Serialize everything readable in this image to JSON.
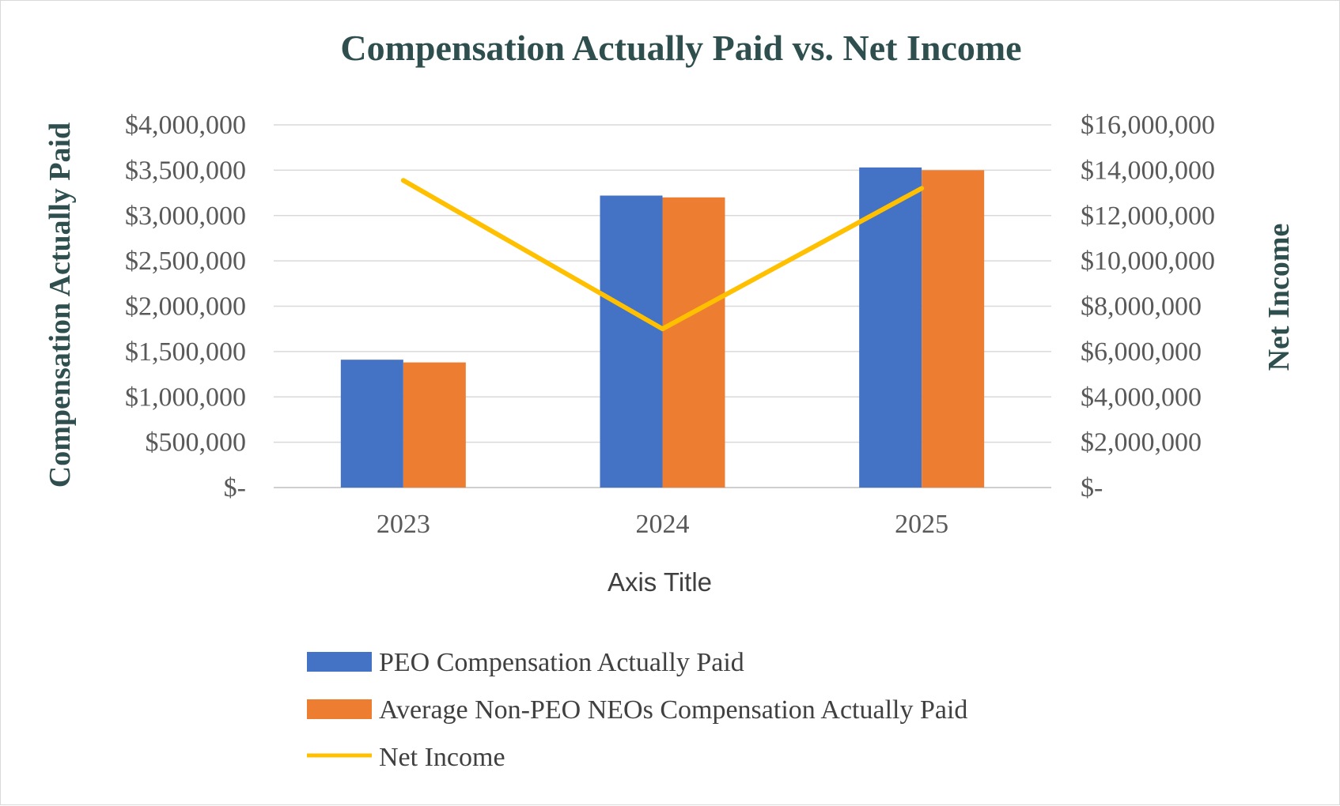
{
  "chart_data": {
    "type": "bar",
    "title": "Compensation Actually Paid vs. Net Income",
    "xlabel": "Axis Title",
    "ylabel": "Compensation Actually Paid",
    "y2label": "Net Income",
    "categories": [
      "2023",
      "2024",
      "2025"
    ],
    "ylim": [
      0,
      4000000
    ],
    "y2lim": [
      0,
      16000000
    ],
    "yticks": [
      "$-",
      "$500,000",
      "$1,000,000",
      "$1,500,000",
      "$2,000,000",
      "$2,500,000",
      "$3,000,000",
      "$3,500,000",
      "$4,000,000"
    ],
    "y2ticks": [
      "$-",
      "$2,000,000",
      "$4,000,000",
      "$6,000,000",
      "$8,000,000",
      "$10,000,000",
      "$12,000,000",
      "$14,000,000",
      "$16,000,000"
    ],
    "grid": true,
    "legend_position": "bottom",
    "series": [
      {
        "name": "PEO Compensation Actually Paid",
        "type": "bar",
        "axis": "left",
        "color": "#4472c4",
        "values": [
          1410000,
          3220000,
          3530000
        ]
      },
      {
        "name": "Average Non-PEO NEOs Compensation Actually Paid",
        "type": "bar",
        "axis": "left",
        "color": "#ed7d31",
        "values": [
          1380000,
          3200000,
          3500000
        ]
      },
      {
        "name": "Net Income",
        "type": "line",
        "axis": "right",
        "color": "#ffc000",
        "values": [
          13550000,
          7000000,
          13200000
        ]
      }
    ],
    "colors": {
      "title": "#2f4f4f",
      "axis_title": "#2f4f4f",
      "ticks": "#595959",
      "grid": "#d9d9d9"
    }
  }
}
